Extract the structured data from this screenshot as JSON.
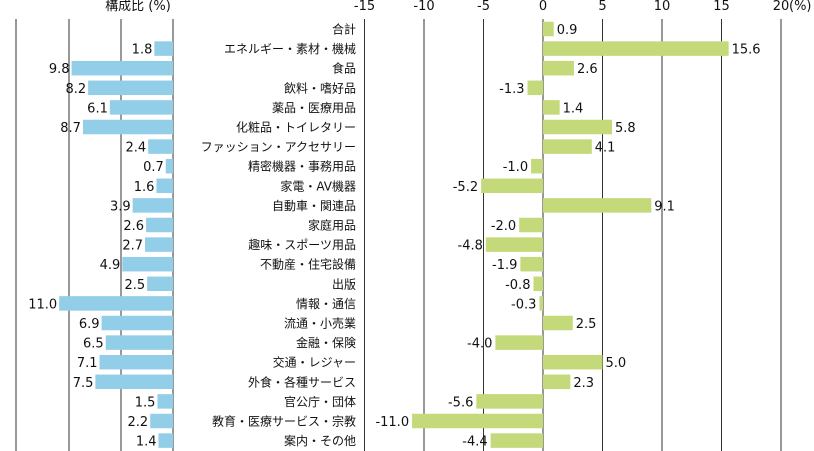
{
  "chart_data": [
    {
      "type": "bar",
      "orientation": "horizontal",
      "title": "構成比 (%)",
      "categories": [
        "合計",
        "エネルギー・素材・機械",
        "食品",
        "飲料・嗜好品",
        "薬品・医療用品",
        "化粧品・トイレタリー",
        "ファッション・アクセサリー",
        "精密機器・事務用品",
        "家電・AV機器",
        "自動車・関連品",
        "家庭用品",
        "趣味・スポーツ用品",
        "不動産・住宅設備",
        "出版",
        "情報・通信",
        "流通・小売業",
        "金融・保険",
        "交通・レジャー",
        "外食・各種サービス",
        "官公庁・団体",
        "教育・医療サービス・宗教",
        "案内・その他"
      ],
      "values": [
        null,
        1.8,
        9.8,
        8.2,
        6.1,
        8.7,
        2.4,
        0.7,
        1.6,
        3.9,
        2.6,
        2.7,
        4.9,
        2.5,
        11.0,
        6.9,
        6.5,
        7.1,
        7.5,
        1.5,
        2.2,
        1.4
      ],
      "value_labels": [
        "",
        "1.8",
        "9.8",
        "8.2",
        "6.1",
        "8.7",
        "2.4",
        "0.7",
        "1.6",
        "3.9",
        "2.6",
        "2.7",
        "4.9",
        "2.5",
        "11.0",
        "6.9",
        "6.5",
        "7.1",
        "7.5",
        "1.5",
        "2.2",
        "1.4"
      ],
      "xlim": [
        0,
        11.8
      ],
      "reversed_axis": true,
      "grid": true,
      "bar_color": "#93cee9"
    },
    {
      "type": "bar",
      "orientation": "horizontal",
      "unit_label": "(%)",
      "categories": [
        "合計",
        "エネルギー・素材・機械",
        "食品",
        "飲料・嗜好品",
        "薬品・医療用品",
        "化粧品・トイレタリー",
        "ファッション・アクセサリー",
        "精密機器・事務用品",
        "家電・AV機器",
        "自動車・関連品",
        "家庭用品",
        "趣味・スポーツ用品",
        "不動産・住宅設備",
        "出版",
        "情報・通信",
        "流通・小売業",
        "金融・保険",
        "交通・レジャー",
        "外食・各種サービス",
        "官公庁・団体",
        "教育・医療サービス・宗教",
        "案内・その他"
      ],
      "values": [
        0.9,
        15.6,
        2.6,
        -1.3,
        1.4,
        5.8,
        4.1,
        -1.0,
        -5.2,
        9.1,
        -2.0,
        -4.8,
        -1.9,
        -0.8,
        -0.3,
        2.5,
        -4.0,
        5.0,
        2.3,
        -5.6,
        -11.0,
        -4.4
      ],
      "value_labels": [
        "0.9",
        "15.6",
        "2.6",
        "-1.3",
        "1.4",
        "5.8",
        "4.1",
        "-1.0",
        "-5.2",
        "9.1",
        "-2.0",
        "-4.8",
        "-1.9",
        "-0.8",
        "-0.3",
        "2.5",
        "-4.0",
        "5.0",
        "2.3",
        "-5.6",
        "-11.0",
        "-4.4"
      ],
      "xlim": [
        -15,
        20
      ],
      "xticks": [
        -15,
        -10,
        -5,
        0,
        5,
        10,
        15,
        20
      ],
      "xtick_labels": [
        "-15",
        "-10",
        "-5",
        "0",
        "5",
        "10",
        "15",
        "20"
      ],
      "grid": true,
      "bar_color": "#c3d97a"
    }
  ]
}
